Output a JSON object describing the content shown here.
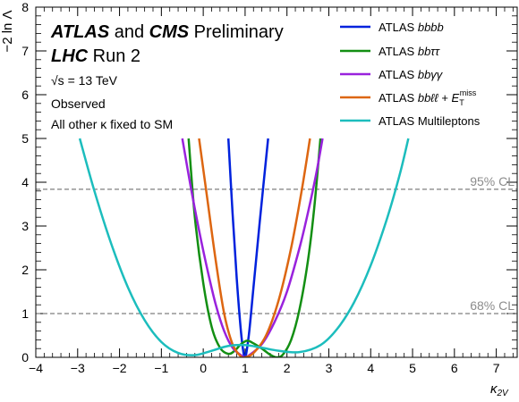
{
  "chart_data": {
    "type": "line",
    "xlabel": "κ2V",
    "ylabel": "−2 ln Λ",
    "xlim": [
      -4,
      7.5
    ],
    "ylim": [
      0,
      8
    ],
    "x_ticks": [
      -4,
      -3,
      -2,
      -1,
      0,
      1,
      2,
      3,
      4,
      5,
      6,
      7
    ],
    "y_ticks": [
      0,
      1,
      2,
      3,
      4,
      5,
      6,
      7,
      8
    ],
    "x_tick_labels": [
      "−4",
      "−3",
      "−2",
      "−1",
      "0",
      "1",
      "2",
      "3",
      "4",
      "5",
      "6",
      "7"
    ],
    "y_tick_labels": [
      "0",
      "1",
      "2",
      "3",
      "4",
      "5",
      "6",
      "7",
      "8"
    ],
    "grid": false,
    "legend_position": "top-right",
    "annotations": {
      "experiment_line1_bold1": "ATLAS",
      "experiment_line1_mid": " and ",
      "experiment_line1_bold2": "CMS",
      "experiment_line1_end": " Preliminary",
      "experiment_line2_bold": "LHC",
      "experiment_line2_end": " Run 2",
      "energy": "√s = 13 TeV",
      "observed": "Observed",
      "fixed": "All other κ fixed to SM"
    },
    "reference_lines": [
      {
        "y": 3.84,
        "label": "95% CL",
        "color": "#7f7f7f"
      },
      {
        "y": 1.0,
        "label": "68% CL",
        "color": "#7f7f7f"
      }
    ],
    "series": [
      {
        "name": "ATLAS bbbb",
        "color": "#0022dd",
        "points": [
          [
            0.6,
            5.0
          ],
          [
            0.7,
            3.3
          ],
          [
            0.8,
            1.8
          ],
          [
            0.9,
            0.6
          ],
          [
            0.97,
            0.05
          ],
          [
            1.0,
            0.0
          ],
          [
            1.03,
            0.1
          ],
          [
            1.1,
            0.6
          ],
          [
            1.2,
            1.6
          ],
          [
            1.35,
            3.1
          ],
          [
            1.55,
            5.0
          ]
        ]
      },
      {
        "name": "ATLAS bbττ",
        "color": "#138f13",
        "points": [
          [
            -0.35,
            5.0
          ],
          [
            -0.2,
            3.2
          ],
          [
            0.0,
            1.7
          ],
          [
            0.2,
            0.7
          ],
          [
            0.4,
            0.22
          ],
          [
            0.6,
            0.08
          ],
          [
            0.75,
            0.15
          ],
          [
            0.9,
            0.3
          ],
          [
            1.05,
            0.38
          ],
          [
            1.2,
            0.32
          ],
          [
            1.4,
            0.2
          ],
          [
            1.6,
            0.06
          ],
          [
            1.75,
            0.0
          ],
          [
            1.9,
            0.06
          ],
          [
            2.1,
            0.4
          ],
          [
            2.3,
            1.1
          ],
          [
            2.5,
            2.2
          ],
          [
            2.65,
            3.4
          ],
          [
            2.8,
            5.0
          ]
        ]
      },
      {
        "name": "ATLAS bbγγ",
        "color": "#9922dd",
        "points": [
          [
            -0.5,
            5.0
          ],
          [
            -0.3,
            3.9
          ],
          [
            -0.1,
            2.9
          ],
          [
            0.1,
            2.0
          ],
          [
            0.3,
            1.2
          ],
          [
            0.5,
            0.6
          ],
          [
            0.7,
            0.22
          ],
          [
            0.9,
            0.05
          ],
          [
            1.0,
            0.0
          ],
          [
            1.1,
            0.05
          ],
          [
            1.4,
            0.3
          ],
          [
            1.7,
            0.8
          ],
          [
            2.0,
            1.5
          ],
          [
            2.3,
            2.5
          ],
          [
            2.5,
            3.3
          ],
          [
            2.7,
            4.2
          ],
          [
            2.85,
            5.0
          ]
        ]
      },
      {
        "name": "ATLAS bbℓℓ + ET miss",
        "color": "#dd6611",
        "points": [
          [
            -0.1,
            5.0
          ],
          [
            0.1,
            3.6
          ],
          [
            0.3,
            2.2
          ],
          [
            0.5,
            1.0
          ],
          [
            0.7,
            0.3
          ],
          [
            0.9,
            0.02
          ],
          [
            1.0,
            0.0
          ],
          [
            1.2,
            0.1
          ],
          [
            1.5,
            0.5
          ],
          [
            1.8,
            1.3
          ],
          [
            2.1,
            2.5
          ],
          [
            2.35,
            3.8
          ],
          [
            2.55,
            5.0
          ]
        ]
      },
      {
        "name": "ATLAS Multileptons",
        "color": "#1cbdbd",
        "points": [
          [
            -2.95,
            5.0
          ],
          [
            -2.6,
            3.8
          ],
          [
            -2.2,
            2.6
          ],
          [
            -1.8,
            1.6
          ],
          [
            -1.4,
            0.85
          ],
          [
            -1.0,
            0.35
          ],
          [
            -0.6,
            0.1
          ],
          [
            -0.2,
            0.05
          ],
          [
            0.2,
            0.15
          ],
          [
            0.6,
            0.26
          ],
          [
            1.0,
            0.28
          ],
          [
            1.4,
            0.22
          ],
          [
            1.8,
            0.15
          ],
          [
            2.3,
            0.12
          ],
          [
            2.8,
            0.28
          ],
          [
            3.2,
            0.65
          ],
          [
            3.6,
            1.25
          ],
          [
            4.0,
            2.1
          ],
          [
            4.4,
            3.2
          ],
          [
            4.7,
            4.2
          ],
          [
            4.9,
            5.0
          ]
        ]
      }
    ],
    "legend": [
      {
        "label": "ATLAS bbbb",
        "color": "#0022dd"
      },
      {
        "label": "ATLAS bbττ",
        "color": "#138f13"
      },
      {
        "label": "ATLAS bbγγ",
        "color": "#9922dd"
      },
      {
        "label": "ATLAS bbℓℓ + ET miss",
        "color": "#dd6611"
      },
      {
        "label": "ATLAS Multileptons",
        "color": "#1cbdbd"
      }
    ]
  }
}
